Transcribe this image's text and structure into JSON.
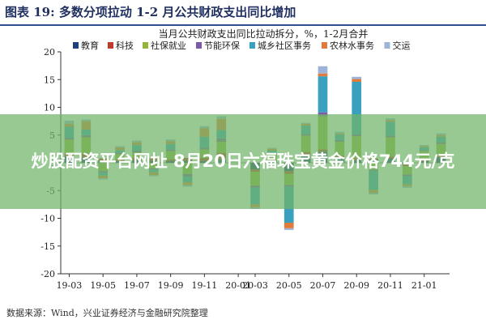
{
  "figure": {
    "title": "图表 19:  多数分项拉动 1-2 月公共财政支出同比增加",
    "source": "数据来源：Wind，兴业证券经济与金融研究院整理"
  },
  "overlay": {
    "text": "炒股配资平台网址 8月20日六福珠宝黄金价格744元/克"
  },
  "chart_data": {
    "type": "bar",
    "stacked": true,
    "title": "当月公共财政支出同比拉动拆分，%，1-2月合并",
    "xlabel": "",
    "ylabel": "",
    "ylim": [
      -20,
      20
    ],
    "yticks": [
      -20,
      -15,
      -10,
      -5,
      0,
      5,
      10,
      15,
      20
    ],
    "grid": false,
    "legend_position": "top",
    "x_tick_labels": [
      "19-03",
      "19-05",
      "19-07",
      "19-09",
      "19-11",
      "20-01",
      "20-03",
      "20-05",
      "20-07",
      "20-09",
      "20-11",
      "21-01"
    ],
    "categories": [
      "19-03",
      "19-04",
      "19-05",
      "19-06",
      "19-07",
      "19-08",
      "19-09",
      "19-10",
      "19-11",
      "19-12",
      "20-01",
      "20-03",
      "20-04",
      "20-05",
      "20-06",
      "20-07",
      "20-08",
      "20-09",
      "20-10",
      "20-11",
      "20-12",
      "21-01",
      "21-02"
    ],
    "series": [
      {
        "name": "教育",
        "color": "#1f3f7f",
        "values": [
          1.2,
          1.0,
          0.4,
          0.3,
          0.5,
          0.4,
          0.3,
          0.4,
          0.3,
          0.6,
          0.0,
          -1.2,
          0.3,
          -1.5,
          1.5,
          2.0,
          1.0,
          0.5,
          0.6,
          0.8,
          -0.3,
          0.3,
          1.0
        ]
      },
      {
        "name": "科技",
        "color": "#c0392b",
        "values": [
          0.5,
          0.6,
          0.4,
          0.3,
          0.4,
          0.4,
          0.3,
          0.5,
          0.6,
          1.2,
          0.0,
          -0.4,
          0.2,
          -0.5,
          0.4,
          0.4,
          0.3,
          0.3,
          0.2,
          0.3,
          -0.3,
          0.3,
          0.4
        ]
      },
      {
        "name": "社保就业",
        "color": "#93b33d",
        "values": [
          2.5,
          3.0,
          -1.5,
          1.0,
          1.0,
          -1.0,
          1.5,
          -2.0,
          1.5,
          2.0,
          0.0,
          -2.5,
          1.0,
          -2.0,
          3.0,
          6.0,
          2.5,
          4.0,
          -1.2,
          3.5,
          -1.5,
          1.5,
          2.0
        ]
      },
      {
        "name": "节能环保",
        "color": "#7d5aa6",
        "values": [
          0.3,
          0.4,
          -0.3,
          0.2,
          0.3,
          -0.2,
          0.3,
          -0.5,
          0.3,
          0.6,
          0.0,
          -0.4,
          0.2,
          -0.3,
          0.3,
          0.7,
          0.3,
          0.3,
          -0.2,
          0.3,
          -0.3,
          0.2,
          0.3
        ]
      },
      {
        "name": "城乡社区事务",
        "color": "#3aa0c0",
        "values": [
          2.0,
          1.0,
          -0.5,
          0.5,
          1.0,
          -0.5,
          1.0,
          -1.0,
          2.0,
          1.5,
          0.0,
          -3.0,
          0.5,
          -6.5,
          1.5,
          6.5,
          1.0,
          9.5,
          -3.5,
          2.5,
          -1.5,
          0.5,
          1.0
        ]
      },
      {
        "name": "农林水事务",
        "color": "#e07b39",
        "values": [
          0.5,
          1.5,
          -0.5,
          0.5,
          0.5,
          -0.5,
          0.5,
          -0.5,
          1.5,
          2.0,
          0.0,
          -0.5,
          0.3,
          -1.0,
          0.3,
          0.5,
          0.2,
          0.5,
          -0.5,
          0.3,
          -0.3,
          0.2,
          0.3
        ]
      },
      {
        "name": "交运",
        "color": "#9db4d8",
        "values": [
          0.6,
          0.3,
          -0.2,
          0.2,
          0.3,
          -0.2,
          0.3,
          -0.3,
          0.4,
          0.5,
          0.0,
          -0.3,
          0.2,
          -0.3,
          0.2,
          1.3,
          0.3,
          0.4,
          -0.3,
          0.3,
          -0.3,
          0.2,
          0.3
        ]
      }
    ]
  }
}
